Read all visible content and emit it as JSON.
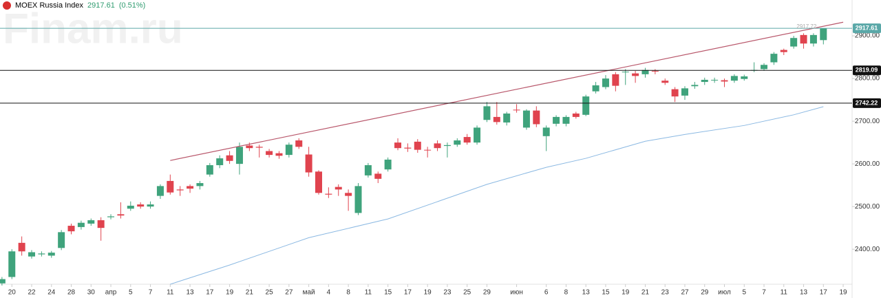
{
  "header": {
    "name": "MOEX Russia Index",
    "price": "2917.61",
    "change": "(0.51%)"
  },
  "watermark": "Finam.ru",
  "chart_data": {
    "type": "candlestick",
    "up_color": "#3fa37c",
    "down_color": "#e0434e",
    "open": [
      2320,
      2335,
      2415,
      2383,
      2388,
      2385,
      2403,
      2455,
      2452,
      2460,
      2468,
      2475,
      2482,
      2495,
      2505,
      2500,
      2525,
      2560,
      2540,
      2548,
      2548,
      2575,
      2597,
      2620,
      2600,
      2643,
      2640,
      2630,
      2625,
      2621,
      2655,
      2622,
      2582,
      2530,
      2546,
      2532,
      2485,
      2573,
      2577,
      2587,
      2650,
      2638,
      2652,
      2633,
      2648,
      2642,
      2645,
      2663,
      2650,
      2703,
      2710,
      2697,
      2727,
      2685,
      2725,
      2665,
      2694,
      2694,
      2718,
      2715,
      2770,
      2780,
      2810,
      2815,
      2812,
      2810,
      2818,
      2795,
      2775,
      2760,
      2782,
      2792,
      2796,
      2796,
      2795,
      2799,
      2819,
      2822,
      2838,
      2867,
      2875,
      2902,
      2882,
      2890
    ],
    "high": [
      2335,
      2400,
      2430,
      2398,
      2395,
      2396,
      2445,
      2460,
      2467,
      2472,
      2475,
      2482,
      2510,
      2512,
      2510,
      2512,
      2552,
      2575,
      2548,
      2552,
      2560,
      2602,
      2620,
      2630,
      2650,
      2650,
      2645,
      2635,
      2630,
      2650,
      2660,
      2640,
      2585,
      2545,
      2552,
      2540,
      2555,
      2602,
      2582,
      2615,
      2660,
      2648,
      2658,
      2640,
      2655,
      2650,
      2660,
      2670,
      2690,
      2745,
      2745,
      2722,
      2740,
      2728,
      2735,
      2690,
      2714,
      2714,
      2722,
      2762,
      2792,
      2808,
      2815,
      2822,
      2818,
      2825,
      2822,
      2800,
      2780,
      2782,
      2792,
      2802,
      2802,
      2800,
      2810,
      2809,
      2838,
      2836,
      2862,
      2870,
      2900,
      2906,
      2906,
      2917.72
    ],
    "low": [
      2315,
      2330,
      2385,
      2378,
      2383,
      2380,
      2398,
      2435,
      2446,
      2455,
      2420,
      2470,
      2472,
      2490,
      2495,
      2495,
      2518,
      2528,
      2525,
      2532,
      2540,
      2570,
      2590,
      2600,
      2575,
      2630,
      2615,
      2615,
      2612,
      2615,
      2635,
      2570,
      2528,
      2520,
      2525,
      2490,
      2480,
      2568,
      2555,
      2582,
      2632,
      2628,
      2626,
      2615,
      2630,
      2615,
      2640,
      2645,
      2645,
      2698,
      2692,
      2690,
      2720,
      2680,
      2686,
      2630,
      2688,
      2688,
      2706,
      2712,
      2765,
      2775,
      2770,
      2785,
      2790,
      2802,
      2810,
      2785,
      2745,
      2750,
      2776,
      2785,
      2790,
      2780,
      2790,
      2795,
      2815,
      2818,
      2832,
      2855,
      2870,
      2870,
      2875,
      2880
    ],
    "close": [
      2330,
      2395,
      2395,
      2393,
      2390,
      2392,
      2440,
      2442,
      2462,
      2468,
      2450,
      2477,
      2479,
      2502,
      2500,
      2505,
      2548,
      2533,
      2538,
      2542,
      2555,
      2597,
      2613,
      2607,
      2640,
      2637,
      2638,
      2621,
      2619,
      2645,
      2640,
      2580,
      2532,
      2528,
      2540,
      2525,
      2548,
      2597,
      2565,
      2610,
      2637,
      2636,
      2633,
      2632,
      2637,
      2644,
      2655,
      2650,
      2685,
      2735,
      2698,
      2718,
      2726,
      2725,
      2693,
      2685,
      2710,
      2710,
      2710,
      2758,
      2784,
      2800,
      2783,
      2816,
      2806,
      2820,
      2817,
      2790,
      2758,
      2777,
      2785,
      2797,
      2797,
      2793,
      2806,
      2805,
      2820,
      2832,
      2858,
      2862,
      2895,
      2882,
      2902,
      2917.61
    ],
    "moving_average": {
      "color": "#8ab8e2",
      "x": [
        17,
        23,
        29,
        31,
        39,
        49,
        55,
        59,
        65,
        69,
        75,
        80,
        83
      ],
      "values": [
        2318,
        2363,
        2411,
        2427,
        2471,
        2552,
        2592,
        2613,
        2653,
        2669,
        2690,
        2715,
        2734
      ]
    },
    "trend_line": {
      "color": "#b8566a",
      "x": [
        17,
        85
      ],
      "values": [
        2608,
        2932
      ]
    },
    "levels": [
      {
        "value": 2917.61,
        "color": "#5aa8a8"
      },
      {
        "value": 2819.09,
        "color": "#111111"
      },
      {
        "value": 2742.22,
        "color": "#111111"
      }
    ],
    "max_marker": 2917.72,
    "xlim": [
      -0.2,
      85.9
    ],
    "ylim": [
      2318,
      2984
    ],
    "xticks": [
      {
        "value": 1,
        "label": "20"
      },
      {
        "value": 3,
        "label": "22"
      },
      {
        "value": 5,
        "label": "24"
      },
      {
        "value": 7,
        "label": "28"
      },
      {
        "value": 9,
        "label": "30"
      },
      {
        "value": 11,
        "label": "апр"
      },
      {
        "value": 13,
        "label": "5"
      },
      {
        "value": 15,
        "label": "7"
      },
      {
        "value": 17,
        "label": "11"
      },
      {
        "value": 19,
        "label": "13"
      },
      {
        "value": 21,
        "label": "17"
      },
      {
        "value": 23,
        "label": "19"
      },
      {
        "value": 25,
        "label": "21"
      },
      {
        "value": 27,
        "label": "25"
      },
      {
        "value": 29,
        "label": "27"
      },
      {
        "value": 31,
        "label": "май"
      },
      {
        "value": 33,
        "label": "4"
      },
      {
        "value": 35,
        "label": "8"
      },
      {
        "value": 37,
        "label": "11"
      },
      {
        "value": 39,
        "label": "15"
      },
      {
        "value": 41,
        "label": "17"
      },
      {
        "value": 43,
        "label": "19"
      },
      {
        "value": 45,
        "label": "23"
      },
      {
        "value": 47,
        "label": "25"
      },
      {
        "value": 49,
        "label": "29"
      },
      {
        "value": 52,
        "label": "июн"
      },
      {
        "value": 55,
        "label": "6"
      },
      {
        "value": 57,
        "label": "8"
      },
      {
        "value": 59,
        "label": "13"
      },
      {
        "value": 61,
        "label": "15"
      },
      {
        "value": 63,
        "label": "19"
      },
      {
        "value": 65,
        "label": "21"
      },
      {
        "value": 67,
        "label": "23"
      },
      {
        "value": 69,
        "label": "27"
      },
      {
        "value": 71,
        "label": "29"
      },
      {
        "value": 73,
        "label": "июл"
      },
      {
        "value": 75,
        "label": "5"
      },
      {
        "value": 77,
        "label": "7"
      },
      {
        "value": 79,
        "label": "11"
      },
      {
        "value": 81,
        "label": "13"
      },
      {
        "value": 83,
        "label": "17"
      },
      {
        "value": 85,
        "label": "19"
      }
    ],
    "yticks": [
      {
        "value": 2400,
        "label": "2400.00"
      },
      {
        "value": 2500,
        "label": "2500.00"
      },
      {
        "value": 2600,
        "label": "2600.00"
      },
      {
        "value": 2700,
        "label": "2700.00"
      },
      {
        "value": 2800,
        "label": "2800.00"
      },
      {
        "value": 2900,
        "label": "2900.00"
      }
    ]
  }
}
